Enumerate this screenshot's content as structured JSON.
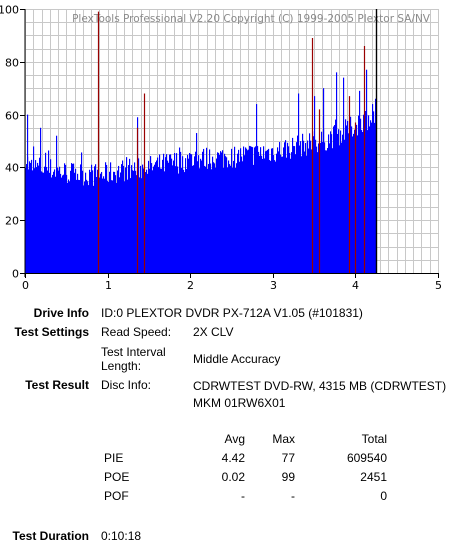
{
  "chart_data": {
    "type": "bar",
    "watermark": "PlexTools Professional V2.20 Copyright (C) 1999-2005 Plextor SA/NV",
    "xlim": [
      0,
      5
    ],
    "ylim": [
      0,
      100
    ],
    "x_ticks": [
      "0",
      "1",
      "2",
      "3",
      "4",
      "5"
    ],
    "y_ticks": [
      "0",
      "20",
      "40",
      "60",
      "80",
      "100"
    ],
    "grid": true,
    "colors": {
      "pie": "#0000ff",
      "poe": "#990000",
      "end_marker": "#000000",
      "grid": "#c8c8c8"
    },
    "pie_profile": {
      "x": [
        0,
        0.05,
        0.2,
        0.5,
        0.9,
        1.2,
        1.5,
        2.0,
        2.5,
        3.0,
        3.3,
        3.6,
        3.9,
        4.1,
        4.25
      ],
      "y": [
        45,
        40,
        40,
        38,
        37,
        39,
        40,
        43,
        44,
        46,
        48,
        50,
        54,
        58,
        60
      ]
    },
    "pie_spikes": [
      {
        "x": 0.02,
        "y": 60
      },
      {
        "x": 0.18,
        "y": 55
      },
      {
        "x": 0.37,
        "y": 52
      },
      {
        "x": 1.36,
        "y": 59
      },
      {
        "x": 2.8,
        "y": 64
      },
      {
        "x": 3.3,
        "y": 68
      },
      {
        "x": 3.5,
        "y": 67
      },
      {
        "x": 3.61,
        "y": 70
      },
      {
        "x": 3.77,
        "y": 76
      },
      {
        "x": 3.85,
        "y": 74
      },
      {
        "x": 4.04,
        "y": 69
      },
      {
        "x": 4.13,
        "y": 77
      },
      {
        "x": 4.2,
        "y": 64
      },
      {
        "x": 4.24,
        "y": 66
      }
    ],
    "poe_spikes": [
      {
        "x": 0.88,
        "y": 99
      },
      {
        "x": 1.44,
        "y": 68
      },
      {
        "x": 1.36,
        "y": 55
      },
      {
        "x": 3.47,
        "y": 89
      },
      {
        "x": 3.56,
        "y": 62
      },
      {
        "x": 3.92,
        "y": 67
      },
      {
        "x": 4.0,
        "y": 57
      },
      {
        "x": 4.11,
        "y": 86
      }
    ],
    "end_x": 4.25
  },
  "info": {
    "drive_info_label": "Drive Info",
    "drive_info_value": "ID:0 PLEXTOR DVDR PX-712A V1.05 (#101831)",
    "test_settings_label": "Test Settings",
    "read_speed_label": "Read Speed:",
    "read_speed_value": "2X CLV",
    "interval_label": "Test Interval Length:",
    "interval_value": "Middle Accuracy",
    "test_result_label": "Test Result",
    "disc_info_label": "Disc Info:",
    "disc_info_value": "CDRWTEST DVD-RW, 4315 MB (CDRWTEST) MKM 01RW6X01"
  },
  "stats": {
    "headers": [
      "Avg",
      "Max",
      "Total"
    ],
    "rows": [
      {
        "name": "PIE",
        "avg": "4.42",
        "max": "77",
        "total": "609540"
      },
      {
        "name": "POE",
        "avg": "0.02",
        "max": "99",
        "total": "2451"
      },
      {
        "name": "POF",
        "avg": "-",
        "max": "-",
        "total": "0"
      }
    ]
  },
  "duration": {
    "label": "Test Duration",
    "value": "0:10:18"
  }
}
